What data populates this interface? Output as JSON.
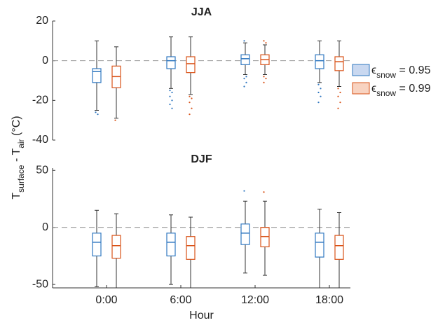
{
  "chart_data": [
    {
      "type": "box",
      "title": "JJA",
      "ylim": [
        -40,
        20
      ],
      "yticks": [
        -40,
        -20,
        0,
        20
      ],
      "reference_line": 0,
      "series": [
        {
          "name": [
            {
              "text": "ϵ"
            },
            {
              "text": "snow",
              "sub": true
            },
            {
              "text": " = 0.95"
            }
          ],
          "color": "#2f77c0",
          "values": [
            {
              "whislo": -25,
              "q1": -11,
              "med": -5.5,
              "q3": -4,
              "whishi": 10,
              "fliers": [
                -26,
                -27
              ]
            },
            {
              "whislo": -14,
              "q1": -4,
              "med": 0,
              "q3": 2,
              "whishi": 12,
              "fliers": [
                -15,
                -16,
                -18,
                -20,
                -22,
                -24
              ]
            },
            {
              "whislo": -7,
              "q1": -2,
              "med": 1,
              "q3": 3,
              "whishi": 9,
              "fliers": [
                10,
                -8,
                -9,
                -11,
                -13
              ]
            },
            {
              "whislo": -11,
              "q1": -4,
              "med": 0,
              "q3": 3,
              "whishi": 10,
              "fliers": [
                -12,
                -14,
                -16,
                -18,
                -21
              ]
            }
          ]
        },
        {
          "name": [
            {
              "text": "ϵ"
            },
            {
              "text": "snow",
              "sub": true
            },
            {
              "text": " = 0.99"
            }
          ],
          "color": "#d95319",
          "values": [
            {
              "whislo": -29,
              "q1": -13.6,
              "med": -8,
              "q3": -2.7,
              "whishi": 7,
              "fliers": [
                -30
              ]
            },
            {
              "whislo": -17,
              "q1": -6,
              "med": -1.5,
              "q3": 2,
              "whishi": 12,
              "fliers": [
                -18,
                -19,
                -21,
                -24,
                -27
              ]
            },
            {
              "whislo": -7,
              "q1": -2,
              "med": 0.5,
              "q3": 3,
              "whishi": 8,
              "fliers": [
                10,
                9,
                -8,
                -9,
                -11
              ]
            },
            {
              "whislo": -13,
              "q1": -5,
              "med": -0.5,
              "q3": 2,
              "whishi": 10,
              "fliers": [
                -14,
                -16,
                -18,
                -21,
                -24
              ]
            }
          ]
        }
      ]
    },
    {
      "type": "box",
      "title": "DJF",
      "xlabel": "Hour",
      "categories": [
        "0:00",
        "6:00",
        "12:00",
        "18:00"
      ],
      "ylim": [
        -53,
        52
      ],
      "yticks": [
        -50,
        0,
        50
      ],
      "reference_line": 0,
      "series": [
        {
          "color": "#2f77c0",
          "values": [
            {
              "whislo": -52,
              "q1": -25,
              "med": -13,
              "q3": -5,
              "whishi": 15,
              "fliers": []
            },
            {
              "whislo": -50,
              "q1": -25,
              "med": -13,
              "q3": -5,
              "whishi": 11,
              "fliers": []
            },
            {
              "whislo": -40,
              "q1": -15,
              "med": -5,
              "q3": 3,
              "whishi": 23,
              "fliers": [
                32
              ]
            },
            {
              "whislo": -53,
              "q1": -26,
              "med": -13,
              "q3": -5,
              "whishi": 16,
              "fliers": []
            }
          ]
        },
        {
          "color": "#d95319",
          "values": [
            {
              "whislo": -53,
              "q1": -27,
              "med": -16,
              "q3": -7,
              "whishi": 12,
              "fliers": []
            },
            {
              "whislo": -53,
              "q1": -28,
              "med": -16,
              "q3": -8,
              "whishi": 9,
              "fliers": []
            },
            {
              "whislo": -42,
              "q1": -17,
              "med": -8,
              "q3": 0,
              "whishi": 23,
              "fliers": [
                31
              ]
            },
            {
              "whislo": -53,
              "q1": -28,
              "med": -16,
              "q3": -7,
              "whishi": 13,
              "fliers": []
            }
          ]
        }
      ]
    }
  ],
  "ylabel": [
    {
      "text": "T"
    },
    {
      "text": "surface",
      "sub": true
    },
    {
      "text": " - T"
    },
    {
      "text": "air",
      "sub": true
    },
    {
      "text": " (°C)"
    }
  ]
}
